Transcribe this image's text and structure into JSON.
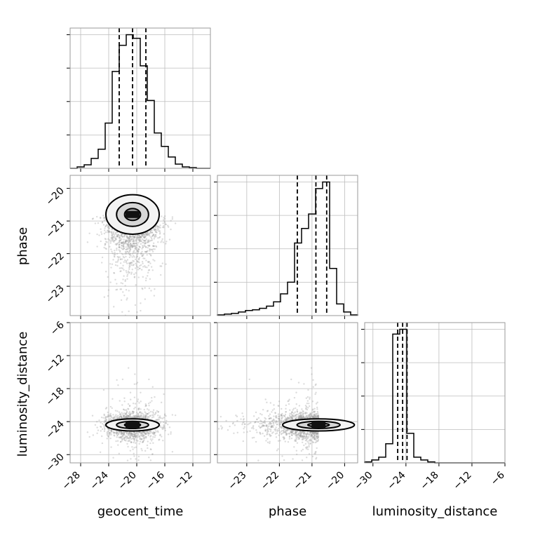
{
  "chart_data": {
    "type": "scatter",
    "parameters": [
      "geocent_time",
      "phase",
      "luminosity_distance"
    ],
    "axis_labels": {
      "x": [
        "geocent_time",
        "phase",
        "luminosity_distance"
      ],
      "y": [
        "phase",
        "luminosity_distance"
      ]
    },
    "ranges": {
      "geocent_time": [
        -29.5,
        -9.5
      ],
      "phase": [
        -23.9,
        -19.6
      ],
      "luminosity_distance": [
        -31.5,
        -6
      ]
    },
    "ticks": {
      "geocent_time": [
        -28,
        -24,
        -20,
        -16,
        -12
      ],
      "phase": [
        -23,
        -22,
        -21,
        -20
      ],
      "luminosity_distance": [
        -30,
        -24,
        -18,
        -12,
        -6
      ]
    },
    "tick_labels": {
      "geocent_time": [
        "−28",
        "−24",
        "−20",
        "−16",
        "−12"
      ],
      "phase": [
        "−23",
        "−22",
        "−21",
        "−20"
      ],
      "luminosity_distance": [
        "−30",
        "−24",
        "−18",
        "−12",
        "−6"
      ]
    },
    "means": {
      "geocent_time": -20.6,
      "phase": -20.8,
      "luminosity_distance": -24.6
    },
    "stds": {
      "geocent_time": 1.9,
      "phase": 0.55,
      "luminosity_distance": 1.0
    },
    "histograms": {
      "geocent_time": {
        "bins": [
          -29.5,
          -28.5,
          -27.5,
          -26.5,
          -25.5,
          -24.5,
          -23.5,
          -22.5,
          -21.5,
          -20.5,
          -19.5,
          -18.5,
          -17.5,
          -16.5,
          -15.5,
          -14.5,
          -13.5,
          -12.5,
          -11.5,
          -10.5,
          -9.5
        ],
        "counts": [
          0,
          2,
          5,
          14,
          27,
          64,
          137,
          174,
          189,
          184,
          145,
          96,
          50,
          31,
          16,
          6,
          2,
          1,
          0,
          0
        ],
        "quantiles": [
          -22.5,
          -20.6,
          -18.7
        ]
      },
      "phase": {
        "bins": [
          -23.9,
          -23.685,
          -23.47,
          -23.255,
          -23.04,
          -22.825,
          -22.61,
          -22.395,
          -22.18,
          -21.965,
          -21.75,
          -21.535,
          -21.32,
          -21.105,
          -20.89,
          -20.675,
          -20.46,
          -20.245,
          -20.03,
          -19.815,
          -19.6
        ],
        "counts": [
          1,
          2,
          3,
          5,
          7,
          8,
          10,
          13,
          19,
          30,
          46,
          100,
          120,
          140,
          175,
          184,
          65,
          16,
          5,
          1
        ],
        "quantiles": [
          -21.45,
          -20.88,
          -20.55
        ]
      },
      "luminosity_distance": {
        "bins": [
          -31.5,
          -30.225,
          -28.95,
          -27.675,
          -26.4,
          -25.125,
          -23.85,
          -22.575,
          -21.3,
          -20.025,
          -18.75,
          -17.475,
          -16.2,
          -14.925,
          -13.65,
          -12.375,
          -11.1,
          -9.825,
          -8.55,
          -7.275,
          -6
        ],
        "counts": [
          1,
          3,
          6,
          20,
          135,
          140,
          31,
          6,
          3,
          1,
          0,
          0,
          0,
          0,
          0,
          0,
          0,
          0,
          0,
          0
        ],
        "quantiles": [
          -25.5,
          -24.6,
          -23.8
        ]
      }
    },
    "grid": true,
    "legend": "none"
  }
}
